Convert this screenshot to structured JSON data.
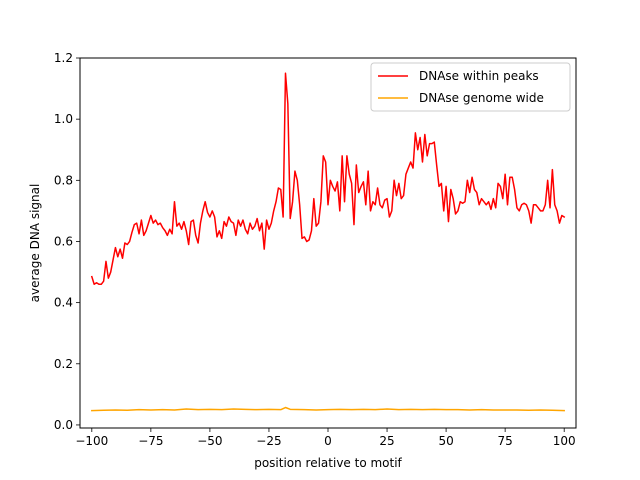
{
  "chart_data": {
    "type": "line",
    "title": "",
    "xlabel": "position relative to motif",
    "ylabel": "average DNA signal",
    "xlim": [
      -105,
      105
    ],
    "ylim": [
      -0.01,
      1.2
    ],
    "xticks": [
      -100,
      -75,
      -50,
      -25,
      0,
      25,
      50,
      75,
      100
    ],
    "xtick_labels": [
      "−100",
      "−75",
      "−50",
      "−25",
      "0",
      "25",
      "50",
      "75",
      "100"
    ],
    "yticks": [
      0.0,
      0.2,
      0.4,
      0.6,
      0.8,
      1.0,
      1.2
    ],
    "ytick_labels": [
      "0.0",
      "0.2",
      "0.4",
      "0.6",
      "0.8",
      "1.0",
      "1.2"
    ],
    "grid": false,
    "legend_position": "top-right",
    "series": [
      {
        "name": "DNAse within peaks",
        "color": "#ff0000",
        "points": [
          [
            -100,
            0.485
          ],
          [
            -99,
            0.46
          ],
          [
            -98,
            0.465
          ],
          [
            -97,
            0.46
          ],
          [
            -96,
            0.46
          ],
          [
            -95,
            0.47
          ],
          [
            -94,
            0.535
          ],
          [
            -93,
            0.48
          ],
          [
            -92,
            0.5
          ],
          [
            -91,
            0.54
          ],
          [
            -90,
            0.58
          ],
          [
            -89,
            0.55
          ],
          [
            -88,
            0.575
          ],
          [
            -87,
            0.545
          ],
          [
            -86,
            0.595
          ],
          [
            -85,
            0.59
          ],
          [
            -84,
            0.6
          ],
          [
            -83,
            0.63
          ],
          [
            -82,
            0.655
          ],
          [
            -81,
            0.66
          ],
          [
            -80,
            0.625
          ],
          [
            -79,
            0.67
          ],
          [
            -78,
            0.62
          ],
          [
            -77,
            0.635
          ],
          [
            -76,
            0.66
          ],
          [
            -75,
            0.685
          ],
          [
            -74,
            0.66
          ],
          [
            -73,
            0.67
          ],
          [
            -72,
            0.655
          ],
          [
            -71,
            0.66
          ],
          [
            -70,
            0.645
          ],
          [
            -69,
            0.635
          ],
          [
            -68,
            0.62
          ],
          [
            -67,
            0.64
          ],
          [
            -66,
            0.625
          ],
          [
            -65,
            0.73
          ],
          [
            -64,
            0.65
          ],
          [
            -63,
            0.66
          ],
          [
            -62,
            0.64
          ],
          [
            -61,
            0.665
          ],
          [
            -60,
            0.635
          ],
          [
            -59,
            0.59
          ],
          [
            -58,
            0.665
          ],
          [
            -57,
            0.67
          ],
          [
            -56,
            0.62
          ],
          [
            -55,
            0.595
          ],
          [
            -54,
            0.66
          ],
          [
            -53,
            0.7
          ],
          [
            -52,
            0.73
          ],
          [
            -51,
            0.695
          ],
          [
            -50,
            0.68
          ],
          [
            -49,
            0.7
          ],
          [
            -48,
            0.68
          ],
          [
            -47,
            0.615
          ],
          [
            -46,
            0.635
          ],
          [
            -45,
            0.61
          ],
          [
            -44,
            0.665
          ],
          [
            -43,
            0.65
          ],
          [
            -42,
            0.68
          ],
          [
            -41,
            0.665
          ],
          [
            -40,
            0.66
          ],
          [
            -39,
            0.62
          ],
          [
            -38,
            0.67
          ],
          [
            -37,
            0.65
          ],
          [
            -36,
            0.67
          ],
          [
            -35,
            0.64
          ],
          [
            -34,
            0.625
          ],
          [
            -33,
            0.66
          ],
          [
            -32,
            0.64
          ],
          [
            -31,
            0.65
          ],
          [
            -30,
            0.675
          ],
          [
            -29,
            0.635
          ],
          [
            -28,
            0.66
          ],
          [
            -27,
            0.575
          ],
          [
            -26,
            0.67
          ],
          [
            -25,
            0.64
          ],
          [
            -24,
            0.66
          ],
          [
            -23,
            0.7
          ],
          [
            -22,
            0.73
          ],
          [
            -21,
            0.775
          ],
          [
            -20,
            0.77
          ],
          [
            -19,
            0.68
          ],
          [
            -18,
            1.15
          ],
          [
            -17,
            1.05
          ],
          [
            -16,
            0.675
          ],
          [
            -15,
            0.73
          ],
          [
            -14,
            0.83
          ],
          [
            -13,
            0.8
          ],
          [
            -12,
            0.72
          ],
          [
            -11,
            0.61
          ],
          [
            -10,
            0.615
          ],
          [
            -9,
            0.6
          ],
          [
            -8,
            0.605
          ],
          [
            -7,
            0.635
          ],
          [
            -6,
            0.74
          ],
          [
            -5,
            0.65
          ],
          [
            -4,
            0.66
          ],
          [
            -3,
            0.73
          ],
          [
            -2,
            0.88
          ],
          [
            -1,
            0.86
          ],
          [
            0,
            0.72
          ],
          [
            1,
            0.8
          ],
          [
            2,
            0.78
          ],
          [
            3,
            0.765
          ],
          [
            4,
            0.795
          ],
          [
            5,
            0.7
          ],
          [
            6,
            0.88
          ],
          [
            7,
            0.73
          ],
          [
            8,
            0.88
          ],
          [
            9,
            0.82
          ],
          [
            10,
            0.79
          ],
          [
            11,
            0.655
          ],
          [
            12,
            0.85
          ],
          [
            13,
            0.76
          ],
          [
            14,
            0.78
          ],
          [
            15,
            0.795
          ],
          [
            16,
            0.72
          ],
          [
            17,
            0.83
          ],
          [
            18,
            0.7
          ],
          [
            19,
            0.73
          ],
          [
            20,
            0.72
          ],
          [
            21,
            0.775
          ],
          [
            22,
            0.72
          ],
          [
            23,
            0.71
          ],
          [
            24,
            0.735
          ],
          [
            25,
            0.74
          ],
          [
            26,
            0.68
          ],
          [
            27,
            0.7
          ],
          [
            28,
            0.8
          ],
          [
            29,
            0.75
          ],
          [
            30,
            0.79
          ],
          [
            31,
            0.74
          ],
          [
            32,
            0.75
          ],
          [
            33,
            0.82
          ],
          [
            34,
            0.84
          ],
          [
            35,
            0.86
          ],
          [
            36,
            0.84
          ],
          [
            37,
            0.955
          ],
          [
            38,
            0.9
          ],
          [
            39,
            0.94
          ],
          [
            40,
            0.86
          ],
          [
            41,
            0.95
          ],
          [
            42,
            0.88
          ],
          [
            43,
            0.92
          ],
          [
            44,
            0.92
          ],
          [
            45,
            0.925
          ],
          [
            46,
            0.85
          ],
          [
            47,
            0.78
          ],
          [
            48,
            0.79
          ],
          [
            49,
            0.7
          ],
          [
            50,
            0.78
          ],
          [
            51,
            0.665
          ],
          [
            52,
            0.77
          ],
          [
            53,
            0.74
          ],
          [
            54,
            0.69
          ],
          [
            55,
            0.7
          ],
          [
            56,
            0.73
          ],
          [
            57,
            0.725
          ],
          [
            58,
            0.73
          ],
          [
            59,
            0.8
          ],
          [
            60,
            0.76
          ],
          [
            61,
            0.81
          ],
          [
            62,
            0.77
          ],
          [
            63,
            0.76
          ],
          [
            64,
            0.72
          ],
          [
            65,
            0.74
          ],
          [
            66,
            0.73
          ],
          [
            67,
            0.72
          ],
          [
            68,
            0.73
          ],
          [
            69,
            0.705
          ],
          [
            70,
            0.74
          ],
          [
            71,
            0.71
          ],
          [
            72,
            0.79
          ],
          [
            73,
            0.78
          ],
          [
            74,
            0.74
          ],
          [
            75,
            0.82
          ],
          [
            76,
            0.72
          ],
          [
            77,
            0.81
          ],
          [
            78,
            0.81
          ],
          [
            79,
            0.77
          ],
          [
            80,
            0.71
          ],
          [
            81,
            0.7
          ],
          [
            82,
            0.72
          ],
          [
            83,
            0.725
          ],
          [
            84,
            0.72
          ],
          [
            85,
            0.7
          ],
          [
            86,
            0.66
          ],
          [
            87,
            0.72
          ],
          [
            88,
            0.72
          ],
          [
            89,
            0.71
          ],
          [
            90,
            0.7
          ],
          [
            91,
            0.7
          ],
          [
            92,
            0.72
          ],
          [
            93,
            0.8
          ],
          [
            94,
            0.71
          ],
          [
            95,
            0.835
          ],
          [
            96,
            0.72
          ],
          [
            97,
            0.7
          ],
          [
            98,
            0.66
          ],
          [
            99,
            0.685
          ],
          [
            100,
            0.68
          ]
        ]
      },
      {
        "name": "DNAse genome wide",
        "color": "#ffa500",
        "points": [
          [
            -100,
            0.047
          ],
          [
            -95,
            0.048
          ],
          [
            -90,
            0.049
          ],
          [
            -85,
            0.048
          ],
          [
            -80,
            0.05
          ],
          [
            -75,
            0.049
          ],
          [
            -70,
            0.05
          ],
          [
            -65,
            0.049
          ],
          [
            -60,
            0.052
          ],
          [
            -55,
            0.05
          ],
          [
            -50,
            0.051
          ],
          [
            -45,
            0.05
          ],
          [
            -40,
            0.052
          ],
          [
            -35,
            0.051
          ],
          [
            -30,
            0.05
          ],
          [
            -25,
            0.051
          ],
          [
            -20,
            0.05
          ],
          [
            -18,
            0.057
          ],
          [
            -16,
            0.051
          ],
          [
            -10,
            0.05
          ],
          [
            -5,
            0.049
          ],
          [
            0,
            0.05
          ],
          [
            5,
            0.051
          ],
          [
            10,
            0.05
          ],
          [
            15,
            0.051
          ],
          [
            20,
            0.05
          ],
          [
            25,
            0.052
          ],
          [
            30,
            0.05
          ],
          [
            35,
            0.051
          ],
          [
            40,
            0.05
          ],
          [
            45,
            0.051
          ],
          [
            50,
            0.05
          ],
          [
            55,
            0.05
          ],
          [
            60,
            0.049
          ],
          [
            65,
            0.05
          ],
          [
            70,
            0.049
          ],
          [
            75,
            0.049
          ],
          [
            80,
            0.049
          ],
          [
            85,
            0.048
          ],
          [
            90,
            0.049
          ],
          [
            95,
            0.048
          ],
          [
            100,
            0.047
          ]
        ]
      }
    ]
  }
}
